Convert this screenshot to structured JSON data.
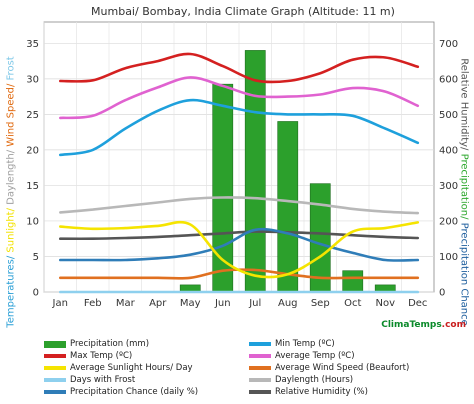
{
  "chart_data": {
    "type": "bar+line",
    "title": "Mumbai/ Bombay, India Climate Graph (Altitude: 11 m)",
    "categories": [
      "Jan",
      "Feb",
      "Mar",
      "Apr",
      "May",
      "Jun",
      "Jul",
      "Aug",
      "Sep",
      "Oct",
      "Nov",
      "Dec"
    ],
    "y_left_ticks": [
      0,
      5,
      10,
      15,
      20,
      25,
      30,
      35
    ],
    "y_right_ticks": [
      0,
      100,
      200,
      300,
      400,
      500,
      600,
      700
    ],
    "ylim_left": [
      0,
      38
    ],
    "ylim_right": [
      0,
      760
    ],
    "grid": true,
    "ylabel_left": [
      {
        "text": "Temperatures/ ",
        "color": "#2a9fd6"
      },
      {
        "text": "Sunlight/ ",
        "color": "#f2e200"
      },
      {
        "text": "Daylength/ ",
        "color": "#a0a0a0"
      },
      {
        "text": "Wind Speed/ ",
        "color": "#e06a10"
      },
      {
        "text": "Frost",
        "color": "#7fc8e8"
      }
    ],
    "ylabel_right": [
      {
        "text": "Relative Humidity/ ",
        "color": "#555555"
      },
      {
        "text": "Precipitation/ ",
        "color": "#2fa82f"
      },
      {
        "text": "Precipitation Chance",
        "color": "#1f5f9e"
      }
    ],
    "series": [
      {
        "name": "Precipitation (mm)",
        "type": "bar",
        "axis": "right",
        "color": "#2ca02c",
        "values": [
          0,
          0,
          0,
          0,
          20,
          585,
          680,
          480,
          305,
          60,
          20,
          0
        ]
      },
      {
        "name": "Max Temp (ºC)",
        "type": "line",
        "axis": "left",
        "color": "#d42020",
        "values": [
          29.7,
          29.8,
          31.5,
          32.5,
          33.5,
          31.8,
          29.8,
          29.7,
          30.8,
          32.7,
          33.0,
          31.7
        ]
      },
      {
        "name": "Average Temp (ºC)",
        "type": "line",
        "axis": "left",
        "color": "#e062d0",
        "values": [
          24.5,
          24.8,
          27.0,
          28.8,
          30.2,
          29.0,
          27.6,
          27.5,
          27.8,
          28.7,
          28.2,
          26.2
        ]
      },
      {
        "name": "Min Temp (ºC)",
        "type": "line",
        "axis": "left",
        "color": "#1ea0dc",
        "values": [
          19.3,
          20.0,
          23.0,
          25.5,
          27.0,
          26.2,
          25.3,
          25.0,
          25.0,
          24.8,
          23.0,
          21.0
        ]
      },
      {
        "name": "Daylength (Hours)",
        "type": "line",
        "axis": "left",
        "color": "#b8b8b8",
        "values": [
          11.2,
          11.6,
          12.1,
          12.6,
          13.1,
          13.3,
          13.2,
          12.8,
          12.3,
          11.7,
          11.3,
          11.1
        ]
      },
      {
        "name": "Average Sunlight Hours/ Day",
        "type": "line",
        "axis": "left",
        "color": "#f5e400",
        "values": [
          9.2,
          8.9,
          9.0,
          9.3,
          9.5,
          4.5,
          2.3,
          2.5,
          5.0,
          8.5,
          9.0,
          9.8
        ]
      },
      {
        "name": "Relative Humidity (%)",
        "type": "line",
        "axis": "right",
        "color": "#555555",
        "values": [
          150,
          150,
          152,
          155,
          160,
          165,
          170,
          168,
          165,
          160,
          155,
          152
        ]
      },
      {
        "name": "Precipitation Chance (daily %)",
        "type": "line",
        "axis": "right",
        "color": "#2f7db8",
        "values": [
          90,
          90,
          90,
          95,
          105,
          130,
          175,
          165,
          135,
          110,
          90,
          90
        ]
      },
      {
        "name": "Average Wind Speed (Beaufort)",
        "type": "line",
        "axis": "left",
        "color": "#e07020",
        "values": [
          2.0,
          2.0,
          2.0,
          2.0,
          2.0,
          3.0,
          3.1,
          2.5,
          2.0,
          2.0,
          2.0,
          2.0
        ]
      },
      {
        "name": "Days with Frost",
        "type": "line",
        "axis": "left",
        "color": "#8ed0ee",
        "values": [
          0,
          0,
          0,
          0,
          0,
          0,
          0,
          0,
          0,
          0,
          0,
          0
        ]
      }
    ],
    "legend_order": [
      "Precipitation (mm)",
      "Min Temp (ºC)",
      "Max Temp (ºC)",
      "Average Temp (ºC)",
      "Average Sunlight Hours/ Day",
      "Average Wind Speed (Beaufort)",
      "Days with Frost",
      "Daylength (Hours)",
      "Precipitation Chance (daily %)",
      "Relative Humidity (%)"
    ],
    "legend_placement": "bottom",
    "source": {
      "name": "ClimaTemps",
      "tld": ".com"
    }
  }
}
